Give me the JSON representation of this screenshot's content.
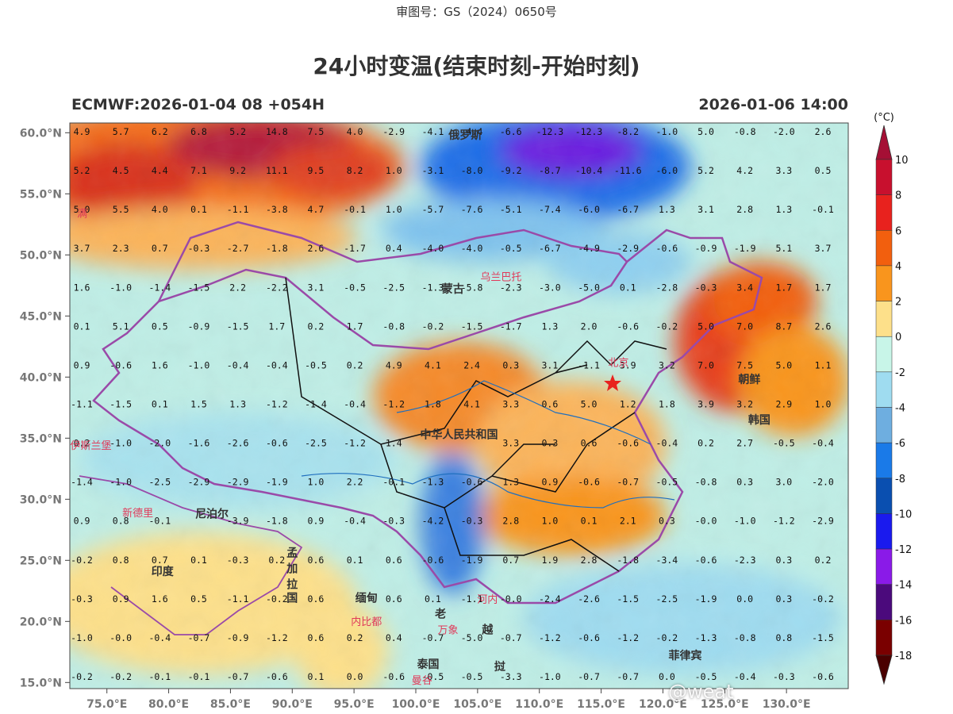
{
  "header": {
    "approval_no": "审图号：GS（2024）0650号",
    "title": "24小时变温(结束时刻-开始时刻)",
    "model_run": "ECMWF:2026-01-04 08 +054H",
    "valid_time": "2026-01-06 14:00"
  },
  "axes": {
    "lat_labels": [
      "60.0°N",
      "55.0°N",
      "50.0°N",
      "45.0°N",
      "40.0°N",
      "35.0°N",
      "30.0°N",
      "25.0°N",
      "20.0°N",
      "15.0°N"
    ],
    "lat_values": [
      60,
      55,
      50,
      45,
      40,
      35,
      30,
      25,
      20,
      15
    ],
    "lon_labels": [
      "75.0°E",
      "80.0°E",
      "85.0°E",
      "90.0°E",
      "95.0°E",
      "100.0°E",
      "105.0°E",
      "110.0°E",
      "115.0°E",
      "120.0°E",
      "125.0°E",
      "130.0°E"
    ],
    "lon_values": [
      75,
      80,
      85,
      90,
      95,
      100,
      105,
      110,
      115,
      120,
      125,
      130
    ],
    "lon_range": [
      72,
      135
    ],
    "lat_range": [
      14.5,
      60.8
    ]
  },
  "colorbar": {
    "unit": "(°C)",
    "labels": [
      "10",
      "8",
      "6",
      "4",
      "2",
      "0",
      "-2",
      "-4",
      "-6",
      "-8",
      "-10",
      "-12",
      "-14",
      "-16",
      "-18"
    ],
    "colors": [
      "#a50f35",
      "#c8102e",
      "#e8221e",
      "#f25f0e",
      "#f9951d",
      "#fde08a",
      "#c8f5e8",
      "#9fdcf0",
      "#6eaee0",
      "#1a7ae8",
      "#0a4fb0",
      "#1a1aee",
      "#8a1ae8",
      "#4b0a7c",
      "#7a0000",
      "#4a0000"
    ]
  },
  "grid_values": [
    [
      "4.9",
      "5.7",
      "6.2",
      "6.8",
      "5.2",
      "14.8",
      "7.5",
      "4.0",
      "-2.9",
      "-4.1",
      "-4.4",
      "-6.6",
      "-12.3",
      "-12.3",
      "-8.2",
      "-1.0",
      "5.0",
      "-0.8",
      "-2.0",
      "2.6"
    ],
    [
      "5.2",
      "4.5",
      "4.4",
      "7.1",
      "9.2",
      "11.1",
      "9.5",
      "8.2",
      "1.0",
      "-3.1",
      "-8.0",
      "-9.2",
      "-8.7",
      "-10.4",
      "-11.6",
      "-6.0",
      "5.2",
      "4.2",
      "3.3",
      "0.5"
    ],
    [
      "5.0",
      "5.5",
      "4.0",
      "0.1",
      "-1.1",
      "-3.8",
      "4.7",
      "-0.1",
      "1.0",
      "-5.7",
      "-7.6",
      "-5.1",
      "-7.4",
      "-6.0",
      "-6.7",
      "1.3",
      "3.1",
      "2.8",
      "1.3",
      "-0.1"
    ],
    [
      "3.7",
      "2.3",
      "0.7",
      "-0.3",
      "-2.7",
      "-1.8",
      "2.6",
      "-1.7",
      "0.4",
      "-4.0",
      "-4.0",
      "-0.5",
      "-6.7",
      "-4.9",
      "-2.9",
      "-0.6",
      "-0.9",
      "-1.9",
      "5.1",
      "3.7"
    ],
    [
      "1.6",
      "-1.0",
      "-1.4",
      "-1.5",
      "2.2",
      "-2.2",
      "3.1",
      "-0.5",
      "-2.5",
      "-1.3",
      "-5.8",
      "-2.3",
      "-3.0",
      "-5.0",
      "0.1",
      "-2.8",
      "-0.3",
      "3.4",
      "1.7",
      "1.7"
    ],
    [
      "0.1",
      "5.1",
      "0.5",
      "-0.9",
      "-1.5",
      "1.7",
      "0.2",
      "1.7",
      "-0.8",
      "-0.2",
      "-1.5",
      "-1.7",
      "1.3",
      "2.0",
      "-0.6",
      "-0.2",
      "5.0",
      "7.0",
      "8.7",
      "2.6"
    ],
    [
      "0.9",
      "-0.6",
      "1.6",
      "-1.0",
      "-0.4",
      "-0.4",
      "-0.5",
      "0.2",
      "4.9",
      "4.1",
      "2.4",
      "0.3",
      "3.1",
      "-1.1",
      "3.9",
      "3.2",
      "7.0",
      "7.5",
      "5.0",
      "1.1"
    ],
    [
      "-1.1",
      "-1.5",
      "0.1",
      "1.5",
      "1.3",
      "-1.2",
      "-1.4",
      "-0.4",
      "-1.2",
      "1.8",
      "4.1",
      "3.3",
      "0.6",
      "5.0",
      "1.2",
      "1.8",
      "3.9",
      "3.2",
      "2.9",
      "1.0"
    ],
    [
      "0.2",
      "-1.0",
      "-2.0",
      "-1.6",
      "-2.6",
      "-0.6",
      "-2.5",
      "-1.2",
      "1.4",
      "",
      "",
      "3.3",
      "0.3",
      "0.6",
      "-0.6",
      "-0.4",
      "0.2",
      "2.7",
      "-0.5",
      "-0.4"
    ],
    [
      "-1.4",
      "-1.0",
      "-2.5",
      "-2.9",
      "-2.9",
      "-1.9",
      "1.0",
      "2.2",
      "-0.1",
      "-1.3",
      "-0.6",
      "1.3",
      "0.9",
      "-0.6",
      "-0.7",
      "-0.5",
      "-0.8",
      "0.3",
      "3.0",
      "-2.0"
    ],
    [
      "0.9",
      "0.8",
      "-0.1",
      "",
      "-3.9",
      "-1.8",
      "0.9",
      "-0.4",
      "-0.3",
      "-4.2",
      "-0.3",
      "2.8",
      "1.0",
      "0.1",
      "2.1",
      "0.3",
      "-0.0",
      "-1.0",
      "-1.2",
      "-2.9"
    ],
    [
      "-0.2",
      "0.8",
      "0.7",
      "0.1",
      "-0.3",
      "0.2",
      "0.6",
      "0.1",
      "0.6",
      "-0.6",
      "-1.9",
      "0.7",
      "1.9",
      "2.8",
      "-1.8",
      "-3.4",
      "-0.6",
      "-2.3",
      "0.3",
      "0.2"
    ],
    [
      "-0.3",
      "0.9",
      "1.6",
      "0.5",
      "-1.1",
      "-0.2",
      "0.6",
      "",
      "0.6",
      "0.1",
      "-1.1",
      "-0.0",
      "-2.4",
      "-2.6",
      "-1.5",
      "-2.5",
      "-1.9",
      "0.0",
      "0.3",
      "-0.2"
    ],
    [
      "-1.0",
      "-0.0",
      "-0.4",
      "-0.7",
      "-0.9",
      "-1.2",
      "0.6",
      "0.2",
      "0.4",
      "-0.7",
      "-5.0",
      "-0.7",
      "-1.2",
      "-0.6",
      "-1.2",
      "-0.2",
      "-1.3",
      "-0.8",
      "0.8",
      "-1.5"
    ],
    [
      "-0.2",
      "-0.2",
      "-0.1",
      "-0.1",
      "-0.7",
      "-0.6",
      "0.1",
      "0.0",
      "-0.6",
      "-0.5",
      "-0.5",
      "-3.3",
      "-1.0",
      "-0.7",
      "-0.7",
      "0.0",
      "-0.5",
      "-0.4",
      "-0.3",
      "-0.6"
    ]
  ],
  "place_labels": [
    {
      "text": "俄罗斯",
      "type": "country",
      "lon": 104,
      "lat": 59.5
    },
    {
      "text": "蒙古",
      "type": "country",
      "lon": 103,
      "lat": 46.9
    },
    {
      "text": "乌兰巴托",
      "type": "city",
      "lon": 106.9,
      "lat": 47.9
    },
    {
      "text": "中华人民共和国",
      "type": "country",
      "lon": 103.5,
      "lat": 35.0
    },
    {
      "text": "北京",
      "type": "city",
      "lon": 116.4,
      "lat": 40.9
    },
    {
      "text": "朝鲜",
      "type": "country",
      "lon": 127,
      "lat": 39.5
    },
    {
      "text": "韩国",
      "type": "country",
      "lon": 127.8,
      "lat": 36.2
    },
    {
      "text": "伊斯兰堡",
      "type": "city",
      "lon": 73.7,
      "lat": 34.1
    },
    {
      "text": "新德里",
      "type": "city",
      "lon": 77.5,
      "lat": 28.6
    },
    {
      "text": "尼泊尔",
      "type": "country",
      "lon": 83.5,
      "lat": 28.5
    },
    {
      "text": "印度",
      "type": "country",
      "lon": 79.5,
      "lat": 23.8
    },
    {
      "text": "孟",
      "type": "country",
      "lon": 90,
      "lat": 25.3
    },
    {
      "text": "加",
      "type": "country",
      "lon": 90,
      "lat": 24.0
    },
    {
      "text": "拉",
      "type": "country",
      "lon": 90,
      "lat": 22.7
    },
    {
      "text": "国",
      "type": "country",
      "lon": 90,
      "lat": 21.6
    },
    {
      "text": "缅甸",
      "type": "country",
      "lon": 96,
      "lat": 21.6
    },
    {
      "text": "内比都",
      "type": "city",
      "lon": 96,
      "lat": 19.7
    },
    {
      "text": "老",
      "type": "country",
      "lon": 102,
      "lat": 20.3
    },
    {
      "text": "万象",
      "type": "city",
      "lon": 102.6,
      "lat": 19.0
    },
    {
      "text": "河内",
      "type": "city",
      "lon": 105.8,
      "lat": 21.5
    },
    {
      "text": "越",
      "type": "country",
      "lon": 105.8,
      "lat": 19.0
    },
    {
      "text": "泰国",
      "type": "country",
      "lon": 101,
      "lat": 16.2
    },
    {
      "text": "曼谷",
      "type": "city",
      "lon": 100.5,
      "lat": 14.9
    },
    {
      "text": "挝",
      "type": "country",
      "lon": 106.8,
      "lat": 16.0
    },
    {
      "text": "菲律宾",
      "type": "country",
      "lon": 121.8,
      "lat": 16.9
    },
    {
      "text": "满",
      "type": "city",
      "lon": 73,
      "lat": 53.1
    }
  ],
  "watermark": "@weat"
}
